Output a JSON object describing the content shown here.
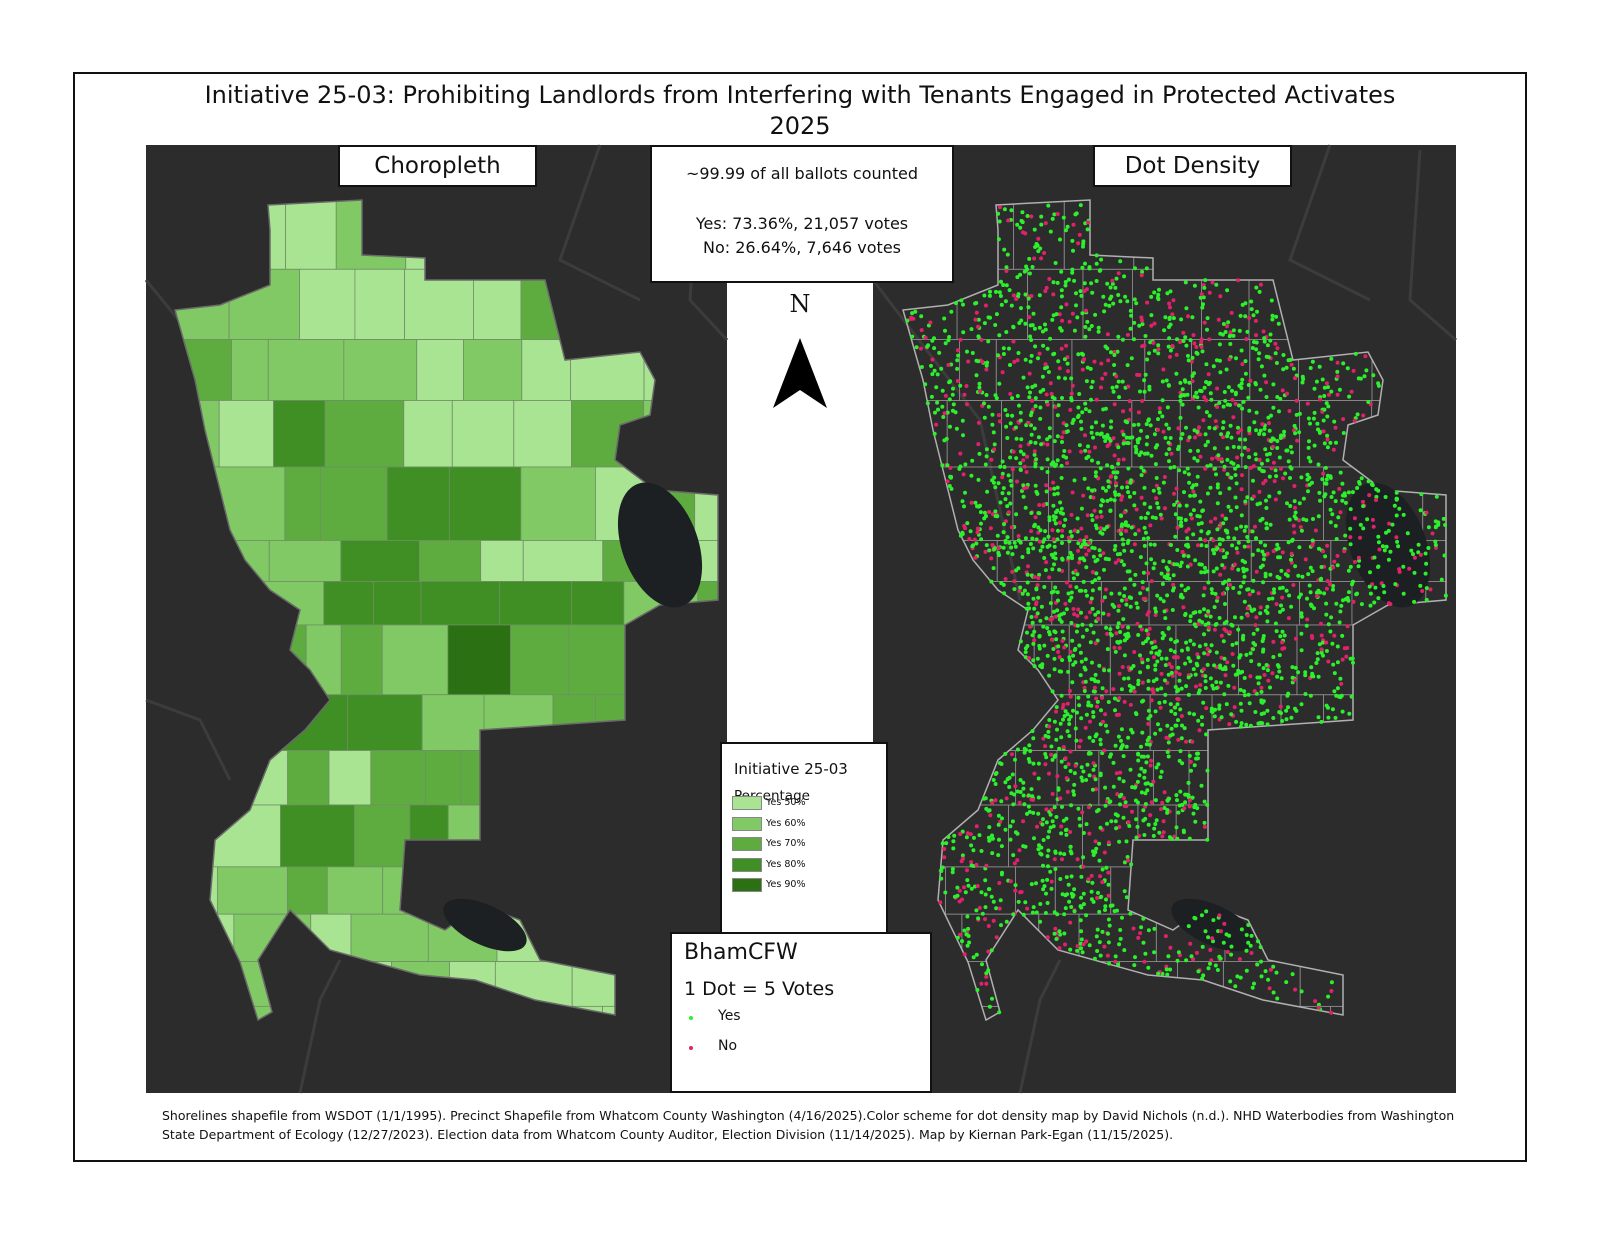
{
  "title": "Initiative 25-03: Prohibiting Landlords from Interfering with Tenants Engaged in Protected Activates",
  "subtitle": "2025",
  "panels": [
    {
      "label": "Choropleth"
    },
    {
      "label": "Dot Density"
    }
  ],
  "summary": {
    "status": "~99.99 of all ballots counted",
    "yes": "Yes: 73.36%, 21,057 votes",
    "no": "No: 26.64%, 7,646 votes"
  },
  "north_arrow": "N",
  "choropleth_legend": {
    "title": "Initiative 25-03",
    "subtitle": "Percentage",
    "items": [
      {
        "label": "Yes 50%",
        "color": "#a8e491"
      },
      {
        "label": "Yes 60%",
        "color": "#80c964"
      },
      {
        "label": "Yes 70%",
        "color": "#5eab40"
      },
      {
        "label": "Yes 80%",
        "color": "#3f8f24"
      },
      {
        "label": "Yes 90%",
        "color": "#2b7114"
      }
    ]
  },
  "dot_legend": {
    "title": "BhamCFW",
    "scale": "1 Dot = 5 Votes",
    "items": [
      {
        "label": "Yes",
        "color": "#2cf02c"
      },
      {
        "label": "No",
        "color": "#e0226a"
      }
    ]
  },
  "credits": "Shorelines shapefile from WSDOT (1/1/1995). Precinct Shapefile from Whatcom County Washington (4/16/2025).Color scheme for dot density map by David Nichols (n.d.). NHD Waterbodies from Washington State Department of Ecology (12/27/2023). Election data from Whatcom County Auditor, Election Division (11/14/2025). Map by Kiernan Park-Egan (11/15/2025)."
}
